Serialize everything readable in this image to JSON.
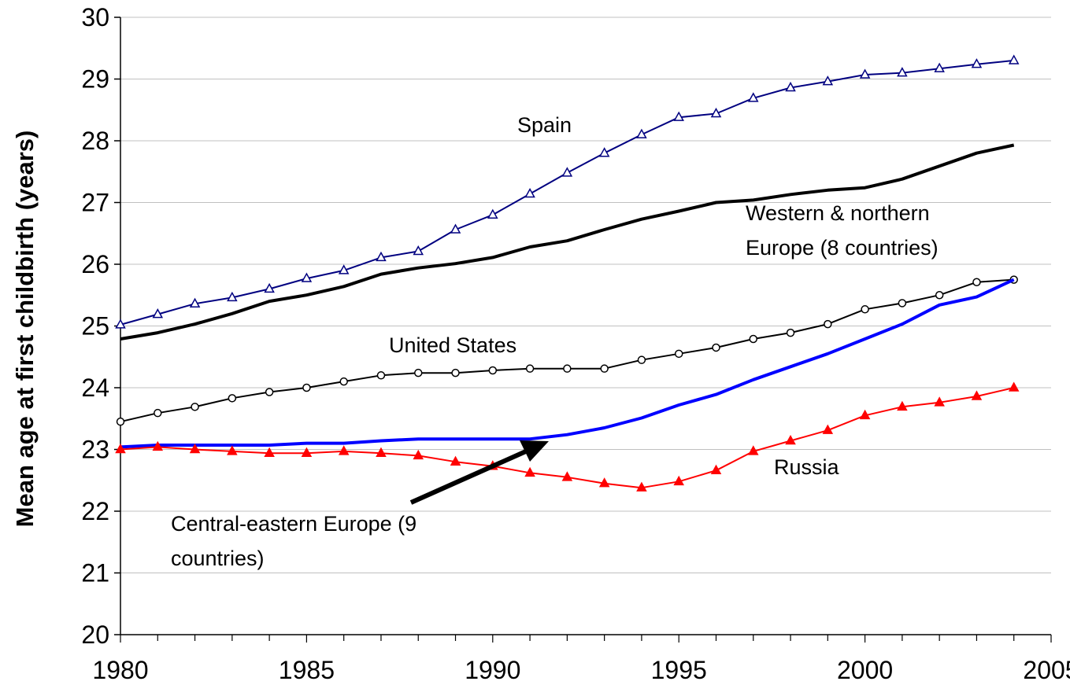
{
  "chart_data": {
    "type": "line",
    "title": "",
    "xlabel": "",
    "ylabel": "Mean age at first childbirth (years)",
    "xlim": [
      1980,
      2005
    ],
    "ylim": [
      20,
      30
    ],
    "x_ticks": [
      1980,
      1985,
      1990,
      1995,
      2000,
      2005
    ],
    "y_ticks": [
      20,
      21,
      22,
      23,
      24,
      25,
      26,
      27,
      28,
      29,
      30
    ],
    "grid": "horizontal",
    "legend": "none",
    "series": [
      {
        "name": "Spain",
        "color": "#000080",
        "marker": "triangle-open",
        "x": [
          1980,
          1981,
          1982,
          1983,
          1984,
          1985,
          1986,
          1987,
          1988,
          1989,
          1990,
          1991,
          1992,
          1993,
          1994,
          1995,
          1996,
          1997,
          1998,
          1999,
          2000,
          2001,
          2002,
          2003,
          2004
        ],
        "y": [
          25.02,
          25.19,
          25.36,
          25.46,
          25.6,
          25.77,
          25.9,
          26.11,
          26.21,
          26.56,
          26.8,
          27.14,
          27.48,
          27.8,
          28.1,
          28.38,
          28.44,
          28.69,
          28.86,
          28.96,
          29.07,
          29.1,
          29.17,
          29.24,
          29.3
        ]
      },
      {
        "name": "Western & northern Europe (8 countries)",
        "color": "#000000",
        "marker": "none",
        "x": [
          1980,
          1981,
          1982,
          1983,
          1984,
          1985,
          1986,
          1987,
          1988,
          1989,
          1990,
          1991,
          1992,
          1993,
          1994,
          1995,
          1996,
          1997,
          1998,
          1999,
          2000,
          2001,
          2002,
          2003,
          2004
        ],
        "y": [
          24.79,
          24.89,
          25.03,
          25.2,
          25.4,
          25.5,
          25.64,
          25.84,
          25.94,
          26.01,
          26.11,
          26.28,
          26.38,
          26.56,
          26.73,
          26.86,
          27.0,
          27.04,
          27.13,
          27.2,
          27.24,
          27.38,
          27.59,
          27.8,
          27.93
        ]
      },
      {
        "name": "United States",
        "color": "#000000",
        "marker": "circle-open",
        "x": [
          1980,
          1981,
          1982,
          1983,
          1984,
          1985,
          1986,
          1987,
          1988,
          1989,
          1990,
          1991,
          1992,
          1993,
          1994,
          1995,
          1996,
          1997,
          1998,
          1999,
          2000,
          2001,
          2002,
          2003,
          2004
        ],
        "y": [
          23.45,
          23.59,
          23.69,
          23.83,
          23.93,
          24.0,
          24.1,
          24.2,
          24.24,
          24.24,
          24.28,
          24.31,
          24.31,
          24.31,
          24.45,
          24.55,
          24.65,
          24.79,
          24.89,
          25.03,
          25.27,
          25.37,
          25.5,
          25.71,
          25.75
        ]
      },
      {
        "name": "Central-eastern Europe (9 countries)",
        "color": "#0000ff",
        "marker": "none",
        "x": [
          1980,
          1981,
          1982,
          1983,
          1984,
          1985,
          1986,
          1987,
          1988,
          1989,
          1990,
          1991,
          1992,
          1993,
          1994,
          1995,
          1996,
          1997,
          1998,
          1999,
          2000,
          2001,
          2002,
          2003,
          2004
        ],
        "y": [
          23.04,
          23.07,
          23.07,
          23.07,
          23.07,
          23.1,
          23.1,
          23.14,
          23.17,
          23.17,
          23.17,
          23.17,
          23.24,
          23.35,
          23.51,
          23.72,
          23.89,
          24.13,
          24.34,
          24.55,
          24.79,
          25.03,
          25.34,
          25.47,
          25.75
        ]
      },
      {
        "name": "Russia",
        "color": "#ff0000",
        "marker": "triangle-filled",
        "x": [
          1980,
          1981,
          1982,
          1983,
          1984,
          1985,
          1986,
          1987,
          1988,
          1989,
          1990,
          1991,
          1992,
          1993,
          1994,
          1995,
          1996,
          1997,
          1998,
          1999,
          2000,
          2001,
          2002,
          2003,
          2004
        ],
        "y": [
          23.0,
          23.04,
          23.0,
          22.97,
          22.94,
          22.94,
          22.97,
          22.94,
          22.9,
          22.8,
          22.73,
          22.62,
          22.55,
          22.45,
          22.38,
          22.48,
          22.66,
          22.97,
          23.14,
          23.31,
          23.55,
          23.69,
          23.76,
          23.86,
          24.0
        ]
      }
    ],
    "annotations": [
      {
        "text": "Spain",
        "series": "Spain"
      },
      {
        "text": "Western & northern",
        "series": "Western & northern Europe (8 countries)"
      },
      {
        "text": "Europe (8 countries)",
        "series": "Western & northern Europe (8 countries)"
      },
      {
        "text": "United States",
        "series": "United States"
      },
      {
        "text": "Russia",
        "series": "Russia"
      },
      {
        "text": "Central-eastern Europe (9",
        "series": "Central-eastern Europe (9 countries)"
      },
      {
        "text": "countries)",
        "series": "Central-eastern Europe (9 countries)"
      }
    ]
  }
}
